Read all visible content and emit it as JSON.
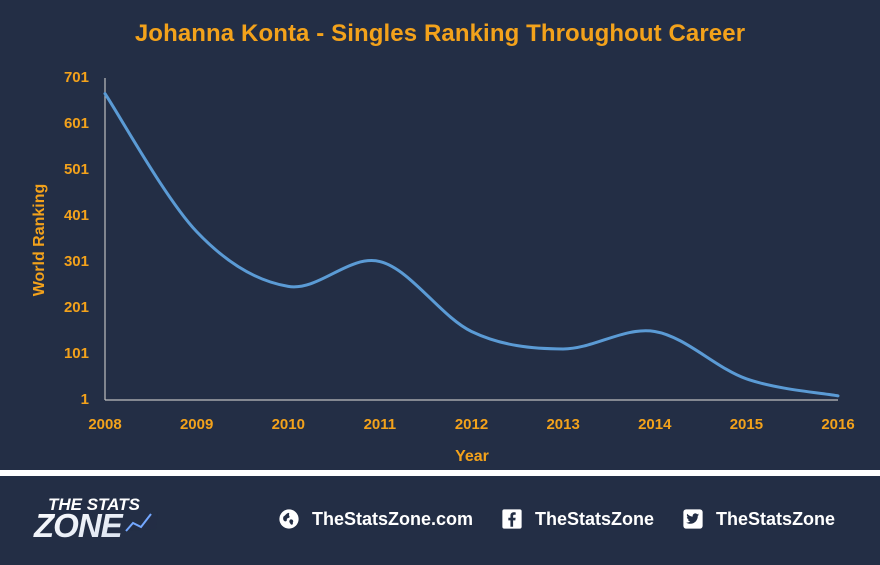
{
  "chart_data": {
    "type": "line",
    "title": "Johanna Konta - Singles Ranking Throughout Career",
    "xlabel": "Year",
    "ylabel": "World Ranking",
    "x": [
      2008,
      2009,
      2010,
      2011,
      2012,
      2013,
      2014,
      2015,
      2016
    ],
    "series": [
      {
        "values": [
          667,
          367,
          248,
          302,
          150,
          112,
          150,
          47,
          10
        ]
      }
    ],
    "xlim": [
      2008,
      2016
    ],
    "ylim": [
      1,
      701
    ],
    "yticks": [
      1,
      101,
      201,
      301,
      401,
      501,
      601,
      701
    ],
    "grid": false,
    "legend": "none",
    "line_style": "smooth",
    "colors": {
      "line": "#5b9bd5",
      "title": "#f3a21b",
      "axis_text": "#f3a21b",
      "axis_line": "#bfbfbf",
      "background": "#232e45"
    }
  },
  "footer": {
    "brand": "THE STATS ZONE",
    "links": [
      {
        "icon": "globe-icon",
        "label": "TheStatsZone.com"
      },
      {
        "icon": "facebook-icon",
        "label": "TheStatsZone"
      },
      {
        "icon": "twitter-icon",
        "label": "TheStatsZone"
      }
    ]
  }
}
